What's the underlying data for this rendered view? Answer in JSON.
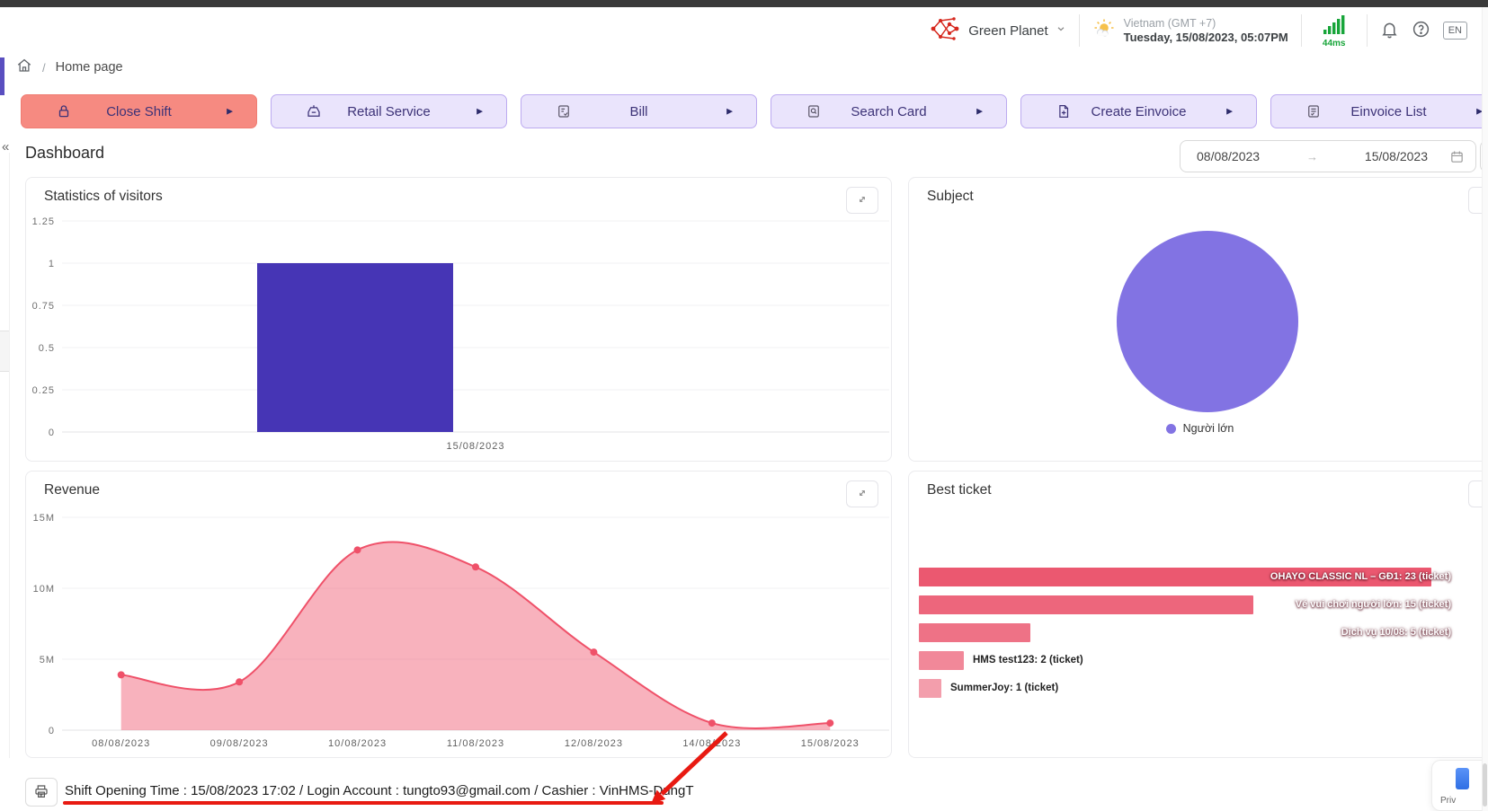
{
  "theme": {
    "danger_bg": "#f68a81",
    "danger_border": "#ef7c72",
    "purple_bg": "#eae4fc",
    "purple_border": "#bcaaf0",
    "button_text": "#3c3277",
    "accent": "#5a4fc0",
    "green": "#18a53a",
    "annotation": "#e81a12"
  },
  "header": {
    "brand": "Green Planet",
    "region": "Vietnam (GMT +7)",
    "datetime": "Tuesday, 15/08/2023, 05:07PM",
    "latency": "44ms",
    "language_badge": "EN"
  },
  "breadcrumb": {
    "separator": "/",
    "current": "Home page"
  },
  "actions": [
    {
      "label": "Close Shift",
      "icon": "lock",
      "variant": "danger"
    },
    {
      "label": "Retail Service",
      "icon": "retail-box",
      "variant": "purple"
    },
    {
      "label": "Bill",
      "icon": "bill-doc",
      "variant": "purple"
    },
    {
      "label": "Search Card",
      "icon": "doc-search",
      "variant": "purple"
    },
    {
      "label": "Create Einvoice",
      "icon": "doc-plus",
      "variant": "purple"
    },
    {
      "label": "Einvoice List",
      "icon": "doc-list",
      "variant": "purple"
    }
  ],
  "page": {
    "title": "Dashboard"
  },
  "date_range": {
    "start": "08/08/2023",
    "end": "15/08/2023"
  },
  "chart_data": [
    {
      "id": "visitors",
      "type": "bar",
      "title": "Statistics of visitors",
      "categories": [
        "15/08/2023"
      ],
      "values": [
        1
      ],
      "ylim": [
        0,
        1.25
      ],
      "yticks": [
        0,
        0.25,
        0.5,
        0.75,
        1,
        1.25
      ],
      "bar_color": "#4635b5",
      "grid": true,
      "legend_position": "none"
    },
    {
      "id": "subject",
      "type": "pie",
      "title": "Subject",
      "slices": [
        {
          "label": "Người lớn",
          "value": 100,
          "color": "#8273e3"
        }
      ],
      "legend_position": "bottom"
    },
    {
      "id": "revenue",
      "type": "area",
      "title": "Revenue",
      "x": [
        "08/08/2023",
        "09/08/2023",
        "10/08/2023",
        "11/08/2023",
        "12/08/2023",
        "14/08/2023",
        "15/08/2023"
      ],
      "values_million": [
        3.9,
        3.4,
        12.7,
        11.5,
        5.5,
        0.5,
        0.5
      ],
      "ylim_million": [
        0,
        15
      ],
      "yticks": [
        {
          "v": 0,
          "label": "0"
        },
        {
          "v": 5,
          "label": "5M"
        },
        {
          "v": 10,
          "label": "10M"
        },
        {
          "v": 15,
          "label": "15M"
        }
      ],
      "line_color": "#ef5169",
      "fill_color": "rgba(243,115,135,0.55)",
      "grid": true
    },
    {
      "id": "best_ticket",
      "type": "bar_horizontal",
      "title": "Best ticket",
      "max": 23,
      "bar_color": "#ea4f68",
      "items": [
        {
          "label": "OHAYO CLASSIC NL – GĐ1: 23 (ticket)",
          "value": 23,
          "label_inside": true,
          "opacity": 0.95
        },
        {
          "label": "Vé vui chơi người lớn: 15 (ticket)",
          "value": 15,
          "label_inside": true,
          "opacity": 0.87
        },
        {
          "label": "Dịch vụ 10/08: 5 (ticket)",
          "value": 5,
          "label_inside": true,
          "opacity": 0.8
        },
        {
          "label": "HMS test123: 2 (ticket)",
          "value": 2,
          "label_inside": false,
          "opacity": 0.68
        },
        {
          "label": "SummerJoy: 1 (ticket)",
          "value": 1,
          "label_inside": false,
          "opacity": 0.55
        }
      ]
    }
  ],
  "footer": {
    "shift_info": "Shift Opening Time : 15/08/2023 17:02 / Login Account : tungto93@gmail.com / Cashier : VinHMS-DungT",
    "privacy_label": "Priv"
  }
}
